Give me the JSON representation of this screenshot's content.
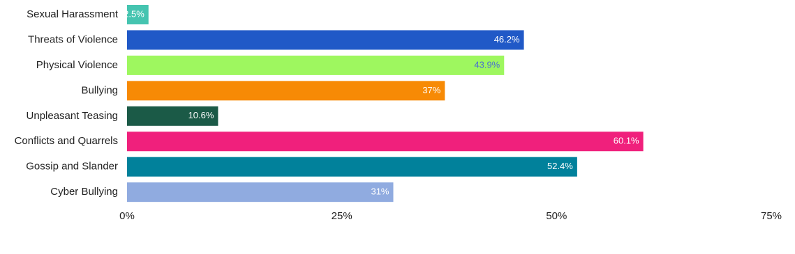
{
  "chart_data": {
    "type": "barh",
    "categories": [
      "Sexual Harassment",
      "Threats of Violence",
      "Physical Violence",
      "Bullying",
      "Unpleasant Teasing",
      "Conflicts and Quarrels",
      "Gossip and Slander",
      "Cyber Bullying"
    ],
    "values": [
      2.5,
      46.2,
      43.9,
      37,
      10.6,
      60.1,
      52.4,
      31
    ],
    "value_labels": [
      "2.5%",
      "46.2%",
      "43.9%",
      "37%",
      "10.6%",
      "60.1%",
      "52.4%",
      "31%"
    ],
    "colors": [
      "#45c4b0",
      "#2059c7",
      "#9ef75f",
      "#f78a05",
      "#1b5a47",
      "#f0207c",
      "#01819b",
      "#90abe0"
    ],
    "value_label_colors": [
      "#ffffff",
      "#ffffff",
      "#4a6fd1",
      "#ffffff",
      "#ffffff",
      "#ffffff",
      "#ffffff",
      "#ffffff"
    ],
    "xlim": [
      0,
      75
    ],
    "xticks": [
      {
        "value": 0,
        "label": "0%"
      },
      {
        "value": 25,
        "label": "25%"
      },
      {
        "value": 50,
        "label": "50%"
      },
      {
        "value": 75,
        "label": "75%"
      }
    ],
    "grid": false
  }
}
